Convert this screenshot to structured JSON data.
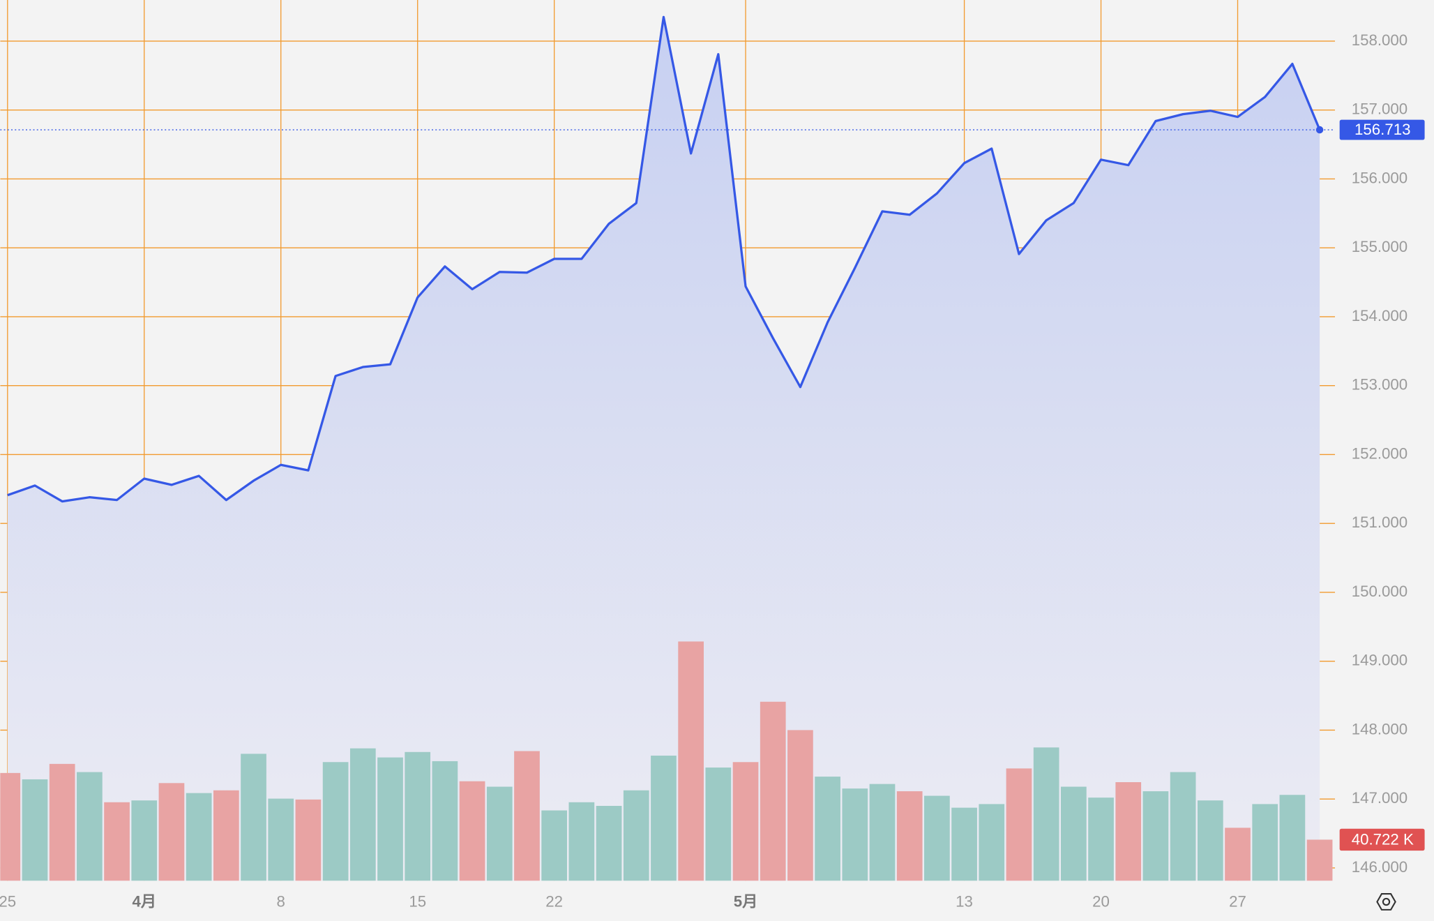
{
  "chart_data": {
    "type": "area",
    "categories": [
      "25",
      null,
      null,
      null,
      null,
      "4月",
      null,
      null,
      null,
      null,
      "8",
      null,
      null,
      null,
      null,
      "15",
      null,
      null,
      null,
      null,
      "22",
      null,
      null,
      null,
      null,
      null,
      null,
      "5月",
      null,
      null,
      null,
      null,
      null,
      null,
      null,
      "13",
      null,
      null,
      null,
      null,
      "20",
      null,
      null,
      null,
      null,
      "27",
      null,
      null,
      null
    ],
    "series": [
      {
        "color": "#3558e6",
        "values": [
          151.41,
          151.55,
          151.32,
          151.38,
          151.34,
          151.65,
          151.56,
          151.69,
          151.34,
          151.62,
          151.85,
          151.77,
          153.14,
          153.27,
          153.31,
          154.28,
          154.73,
          154.4,
          154.65,
          154.64,
          154.84,
          154.84,
          155.35,
          155.65,
          158.35,
          156.37,
          157.81,
          154.44,
          153.69,
          152.98,
          153.92,
          154.71,
          155.53,
          155.48,
          155.79,
          156.23,
          156.44,
          154.91,
          155.4,
          155.65,
          156.28,
          156.2,
          156.84,
          156.94,
          156.99,
          156.9,
          157.19,
          157.67,
          156.713
        ]
      }
    ],
    "last_value_label": "156.713",
    "ylim": [
      145.814,
      158.597
    ],
    "yticks": [
      {
        "value": 146,
        "label": "146.000"
      },
      {
        "value": 147,
        "label": "147.000"
      },
      {
        "value": 148,
        "label": "148.000"
      },
      {
        "value": 149,
        "label": "149.000"
      },
      {
        "value": 150,
        "label": "150.000"
      },
      {
        "value": 151,
        "label": "151.000"
      },
      {
        "value": 152,
        "label": "152.000"
      },
      {
        "value": 153,
        "label": "153.000"
      },
      {
        "value": 154,
        "label": "154.000"
      },
      {
        "value": 155,
        "label": "155.000"
      },
      {
        "value": 156,
        "label": "156.000"
      },
      {
        "value": 157,
        "label": "157.000"
      },
      {
        "value": 158,
        "label": "158.000"
      }
    ],
    "grid": true,
    "grid_color": "#f29a2e",
    "volume": {
      "ylim": [
        0,
        300
      ],
      "values": [
        106.8,
        100.5,
        115.8,
        107.7,
        77.8,
        79.6,
        96.8,
        86.9,
        89.6,
        125.8,
        81.4,
        80.5,
        117.6,
        131.2,
        122.2,
        127.6,
        118.5,
        98.6,
        93.2,
        128.5,
        69.7,
        77.8,
        74.2,
        89.6,
        124.0,
        237.1,
        112.2,
        117.6,
        177.4,
        149.3,
        103.2,
        91.4,
        95.9,
        88.7,
        84.2,
        72.4,
        76.0,
        111.3,
        132.1,
        93.2,
        82.4,
        97.7,
        88.7,
        107.7,
        79.6,
        52.5,
        76.0,
        85.1,
        40.722
      ],
      "colors": [
        "#e8a3a3",
        "#9ccac5",
        "#e8a3a3",
        "#9ccac5",
        "#e8a3a3",
        "#9ccac5",
        "#e8a3a3",
        "#9ccac5",
        "#e8a3a3",
        "#9ccac5",
        "#9ccac5",
        "#e8a3a3",
        "#9ccac5",
        "#9ccac5",
        "#9ccac5",
        "#9ccac5",
        "#9ccac5",
        "#e8a3a3",
        "#9ccac5",
        "#e8a3a3",
        "#9ccac5",
        "#9ccac5",
        "#9ccac5",
        "#9ccac5",
        "#9ccac5",
        "#e8a3a3",
        "#9ccac5",
        "#e8a3a3",
        "#e8a3a3",
        "#e8a3a3",
        "#9ccac5",
        "#9ccac5",
        "#9ccac5",
        "#e8a3a3",
        "#9ccac5",
        "#9ccac5",
        "#9ccac5",
        "#e8a3a3",
        "#9ccac5",
        "#9ccac5",
        "#9ccac5",
        "#e8a3a3",
        "#9ccac5",
        "#9ccac5",
        "#9ccac5",
        "#e8a3a3",
        "#9ccac5",
        "#9ccac5",
        "#e8a3a3"
      ],
      "last_value_label": "40.722 K"
    }
  }
}
